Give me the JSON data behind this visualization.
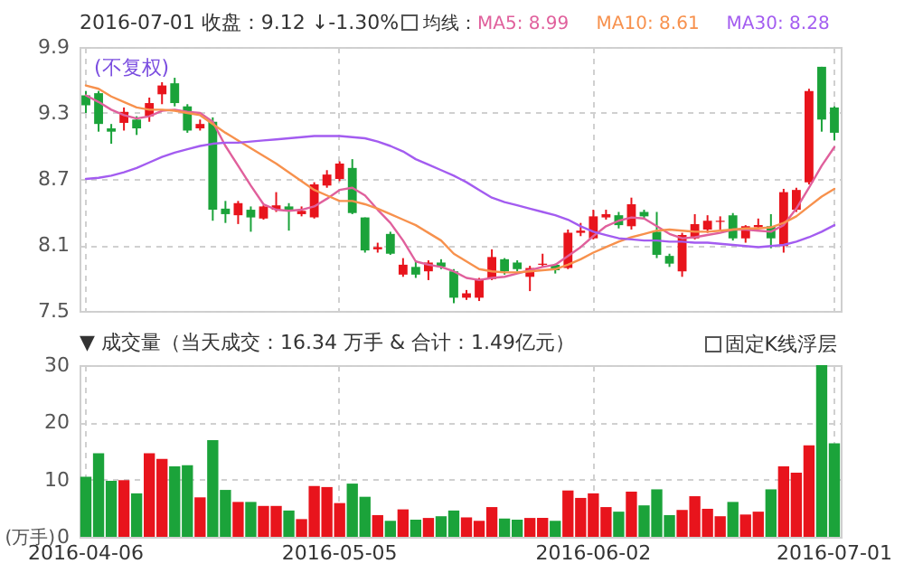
{
  "chart_data": [
    {
      "type": "candlestick",
      "title": "2016-07-01 收盘：9.12 ↓-1.30%",
      "legend_title": "均线：",
      "annotations": [
        "(不复权)"
      ],
      "grid": true,
      "tick_labels": "y",
      "ylim": [
        7.5,
        9.9
      ],
      "yticks": [
        7.5,
        8.1,
        8.7,
        9.3,
        9.9
      ],
      "categories": [
        "2016-04-06",
        null,
        null,
        null,
        null,
        null,
        null,
        null,
        null,
        null,
        null,
        null,
        null,
        null,
        null,
        null,
        null,
        null,
        null,
        null,
        "2016-05-05",
        null,
        null,
        null,
        null,
        null,
        null,
        null,
        null,
        null,
        null,
        null,
        null,
        null,
        null,
        null,
        null,
        null,
        null,
        null,
        "2016-06-02",
        null,
        null,
        null,
        null,
        null,
        null,
        null,
        null,
        null,
        null,
        null,
        null,
        null,
        null,
        null,
        null,
        null,
        null,
        "2016-07-01"
      ],
      "ohlc": [
        [
          9.46,
          9.5,
          9.3,
          9.37
        ],
        [
          9.48,
          9.5,
          9.13,
          9.2
        ],
        [
          9.16,
          9.2,
          9.02,
          9.13
        ],
        [
          9.21,
          9.35,
          9.14,
          9.31
        ],
        [
          9.24,
          9.27,
          9.1,
          9.16
        ],
        [
          9.27,
          9.44,
          9.22,
          9.39
        ],
        [
          9.47,
          9.58,
          9.38,
          9.55
        ],
        [
          9.57,
          9.62,
          9.36,
          9.39
        ],
        [
          9.36,
          9.38,
          9.12,
          9.14
        ],
        [
          9.16,
          9.24,
          9.14,
          9.2
        ],
        [
          9.22,
          9.26,
          8.32,
          8.42
        ],
        [
          8.43,
          8.5,
          8.3,
          8.38
        ],
        [
          8.37,
          8.5,
          8.29,
          8.48
        ],
        [
          8.42,
          8.45,
          8.22,
          8.35
        ],
        [
          8.34,
          8.46,
          8.33,
          8.45
        ],
        [
          8.42,
          8.58,
          8.4,
          8.46
        ],
        [
          8.45,
          8.48,
          8.23,
          8.42
        ],
        [
          8.38,
          8.45,
          8.36,
          8.41
        ],
        [
          8.35,
          8.67,
          8.34,
          8.65
        ],
        [
          8.64,
          8.78,
          8.62,
          8.74
        ],
        [
          8.7,
          8.86,
          8.68,
          8.84
        ],
        [
          8.8,
          8.88,
          8.38,
          8.39
        ],
        [
          8.35,
          8.35,
          8.03,
          8.05
        ],
        [
          8.06,
          8.12,
          8.03,
          8.08
        ],
        [
          8.2,
          8.22,
          8.01,
          8.02
        ],
        [
          7.83,
          7.98,
          7.81,
          7.92
        ],
        [
          7.9,
          7.96,
          7.8,
          7.83
        ],
        [
          7.86,
          7.96,
          7.78,
          7.94
        ],
        [
          7.94,
          7.97,
          7.88,
          7.9
        ],
        [
          7.86,
          7.88,
          7.57,
          7.62
        ],
        [
          7.62,
          7.69,
          7.6,
          7.66
        ],
        [
          7.62,
          7.8,
          7.59,
          7.79
        ],
        [
          7.79,
          8.06,
          7.78,
          7.99
        ],
        [
          7.97,
          7.98,
          7.83,
          7.86
        ],
        [
          7.94,
          7.96,
          7.86,
          7.88
        ],
        [
          7.81,
          7.91,
          7.68,
          7.89
        ],
        [
          7.92,
          8.02,
          7.9,
          7.93
        ],
        [
          7.92,
          7.93,
          7.84,
          7.87
        ],
        [
          7.89,
          8.24,
          7.88,
          8.21
        ],
        [
          8.21,
          8.3,
          8.18,
          8.23
        ],
        [
          8.16,
          8.42,
          8.15,
          8.36
        ],
        [
          8.35,
          8.42,
          8.33,
          8.38
        ],
        [
          8.37,
          8.4,
          8.25,
          8.28
        ],
        [
          8.27,
          8.53,
          8.24,
          8.47
        ],
        [
          8.4,
          8.42,
          8.33,
          8.36
        ],
        [
          8.22,
          8.4,
          7.98,
          8.01
        ],
        [
          8.0,
          8.02,
          7.9,
          7.93
        ],
        [
          7.86,
          8.21,
          7.81,
          8.19
        ],
        [
          8.16,
          8.38,
          8.15,
          8.29
        ],
        [
          8.24,
          8.37,
          8.21,
          8.32
        ],
        [
          8.31,
          8.36,
          8.24,
          8.32
        ],
        [
          8.37,
          8.39,
          8.14,
          8.16
        ],
        [
          8.16,
          8.28,
          8.12,
          8.27
        ],
        [
          8.26,
          8.34,
          8.25,
          8.28
        ],
        [
          8.27,
          8.38,
          8.07,
          8.16
        ],
        [
          8.09,
          8.61,
          8.03,
          8.58
        ],
        [
          8.42,
          8.62,
          8.4,
          8.6
        ],
        [
          8.67,
          9.52,
          8.65,
          9.5
        ],
        [
          9.72,
          9.72,
          9.13,
          9.24
        ],
        [
          9.35,
          9.36,
          9.05,
          9.12
        ]
      ],
      "colors": [
        "#1ba33a",
        "#1ba33a",
        "#1ba33a",
        "#e8141c",
        "#1ba33a",
        "#e8141c",
        "#e8141c",
        "#1ba33a",
        "#1ba33a",
        "#e8141c",
        "#1ba33a",
        "#1ba33a",
        "#e8141c",
        "#1ba33a",
        "#e8141c",
        "#e8141c",
        "#1ba33a",
        "#e8141c",
        "#e8141c",
        "#e8141c",
        "#e8141c",
        "#1ba33a",
        "#1ba33a",
        "#e8141c",
        "#1ba33a",
        "#e8141c",
        "#1ba33a",
        "#e8141c",
        "#1ba33a",
        "#1ba33a",
        "#e8141c",
        "#e8141c",
        "#e8141c",
        "#1ba33a",
        "#1ba33a",
        "#e8141c",
        "#e8141c",
        "#1ba33a",
        "#e8141c",
        "#e8141c",
        "#e8141c",
        "#e8141c",
        "#1ba33a",
        "#e8141c",
        "#1ba33a",
        "#1ba33a",
        "#1ba33a",
        "#e8141c",
        "#e8141c",
        "#e8141c",
        "#e8141c",
        "#1ba33a",
        "#e8141c",
        "#e8141c",
        "#1ba33a",
        "#e8141c",
        "#e8141c",
        "#e8141c",
        "#1ba33a",
        "#1ba33a"
      ],
      "series": [
        {
          "type": "line",
          "name": "MA5: 8.99",
          "color": "#e0609c",
          "values": [
            9.46,
            9.4,
            9.33,
            9.28,
            9.25,
            9.27,
            9.32,
            9.33,
            9.31,
            9.3,
            9.22,
            9.0,
            8.82,
            8.64,
            8.47,
            8.42,
            8.41,
            8.42,
            8.45,
            8.52,
            8.6,
            8.62,
            8.55,
            8.42,
            8.3,
            8.14,
            7.95,
            7.92,
            7.9,
            7.86,
            7.8,
            7.78,
            7.8,
            7.81,
            7.84,
            7.87,
            7.9,
            7.92,
            8.0,
            8.08,
            8.18,
            8.27,
            8.32,
            8.35,
            8.34,
            8.27,
            8.2,
            8.16,
            8.17,
            8.19,
            8.21,
            8.24,
            8.24,
            8.23,
            8.22,
            8.28,
            8.43,
            8.62,
            8.82,
            8.99
          ]
        },
        {
          "type": "line",
          "name": "MA10: 8.61",
          "color": "#f7914d",
          "values": [
            9.55,
            9.52,
            9.45,
            9.4,
            9.35,
            9.33,
            9.33,
            9.32,
            9.3,
            9.28,
            9.2,
            9.12,
            9.05,
            8.98,
            8.91,
            8.84,
            8.76,
            8.68,
            8.6,
            8.55,
            8.5,
            8.5,
            8.47,
            8.43,
            8.38,
            8.33,
            8.28,
            8.21,
            8.14,
            8.02,
            7.95,
            7.88,
            7.86,
            7.85,
            7.85,
            7.86,
            7.87,
            7.88,
            7.92,
            7.97,
            8.03,
            8.08,
            8.13,
            8.17,
            8.2,
            8.23,
            8.24,
            8.23,
            8.22,
            8.22,
            8.23,
            8.24,
            8.25,
            8.25,
            8.26,
            8.3,
            8.36,
            8.45,
            8.54,
            8.61
          ]
        },
        {
          "type": "line",
          "name": "MA30: 8.28",
          "color": "#a35cf0",
          "values": [
            8.7,
            8.71,
            8.73,
            8.76,
            8.8,
            8.85,
            8.9,
            8.94,
            8.97,
            9.0,
            9.02,
            9.03,
            9.03,
            9.04,
            9.05,
            9.06,
            9.07,
            9.08,
            9.09,
            9.09,
            9.09,
            9.08,
            9.07,
            9.04,
            9.0,
            8.95,
            8.88,
            8.83,
            8.78,
            8.73,
            8.67,
            8.6,
            8.53,
            8.49,
            8.46,
            8.43,
            8.4,
            8.37,
            8.33,
            8.27,
            8.22,
            8.19,
            8.16,
            8.15,
            8.14,
            8.14,
            8.13,
            8.13,
            8.12,
            8.12,
            8.11,
            8.1,
            8.09,
            8.08,
            8.09,
            8.1,
            8.13,
            8.17,
            8.22,
            8.28
          ]
        }
      ]
    },
    {
      "type": "bar",
      "title": "▼ 成交量（当天成交：16.34 万手 & 合计：1.49亿元）",
      "ylabel": "(万手)",
      "annotations": [
        "固定K线浮层"
      ],
      "grid": true,
      "ylim": [
        0,
        30
      ],
      "yticks": [
        0,
        10,
        20,
        30
      ],
      "categories": [
        "2016-04-06",
        null,
        null,
        null,
        null,
        null,
        null,
        null,
        null,
        null,
        null,
        null,
        null,
        null,
        null,
        null,
        null,
        null,
        null,
        null,
        "2016-05-05",
        null,
        null,
        null,
        null,
        null,
        null,
        null,
        null,
        null,
        null,
        null,
        null,
        null,
        null,
        null,
        null,
        null,
        null,
        null,
        "2016-06-02",
        null,
        null,
        null,
        null,
        null,
        null,
        null,
        null,
        null,
        null,
        null,
        null,
        null,
        null,
        null,
        null,
        null,
        null,
        "2016-07-01"
      ],
      "values": [
        10.5,
        14.6,
        9.8,
        9.9,
        7.6,
        14.6,
        13.6,
        12.3,
        12.5,
        6.9,
        16.9,
        8.2,
        6.1,
        6.1,
        5.4,
        5.4,
        4.6,
        3.1,
        8.9,
        8.7,
        5.9,
        9.3,
        7.0,
        3.8,
        2.8,
        4.8,
        3.0,
        3.3,
        3.6,
        4.6,
        3.4,
        2.8,
        5.2,
        3.2,
        3.0,
        3.3,
        3.3,
        2.8,
        8.1,
        6.8,
        7.6,
        5.2,
        4.4,
        7.9,
        5.5,
        8.3,
        3.8,
        4.7,
        7.1,
        4.9,
        3.6,
        6.1,
        3.9,
        4.4,
        8.3,
        12.3,
        11.2,
        16.0,
        30,
        16.34
      ],
      "colors": [
        "#1ba33a",
        "#1ba33a",
        "#1ba33a",
        "#e8141c",
        "#1ba33a",
        "#e8141c",
        "#e8141c",
        "#1ba33a",
        "#1ba33a",
        "#e8141c",
        "#1ba33a",
        "#1ba33a",
        "#e8141c",
        "#1ba33a",
        "#e8141c",
        "#e8141c",
        "#1ba33a",
        "#e8141c",
        "#e8141c",
        "#e8141c",
        "#e8141c",
        "#1ba33a",
        "#1ba33a",
        "#e8141c",
        "#1ba33a",
        "#e8141c",
        "#1ba33a",
        "#e8141c",
        "#1ba33a",
        "#1ba33a",
        "#e8141c",
        "#e8141c",
        "#e8141c",
        "#1ba33a",
        "#1ba33a",
        "#e8141c",
        "#e8141c",
        "#1ba33a",
        "#e8141c",
        "#e8141c",
        "#e8141c",
        "#e8141c",
        "#1ba33a",
        "#e8141c",
        "#1ba33a",
        "#1ba33a",
        "#1ba33a",
        "#e8141c",
        "#e8141c",
        "#e8141c",
        "#e8141c",
        "#1ba33a",
        "#e8141c",
        "#e8141c",
        "#1ba33a",
        "#e8141c",
        "#e8141c",
        "#e8141c",
        "#1ba33a",
        "#1ba33a"
      ]
    }
  ]
}
